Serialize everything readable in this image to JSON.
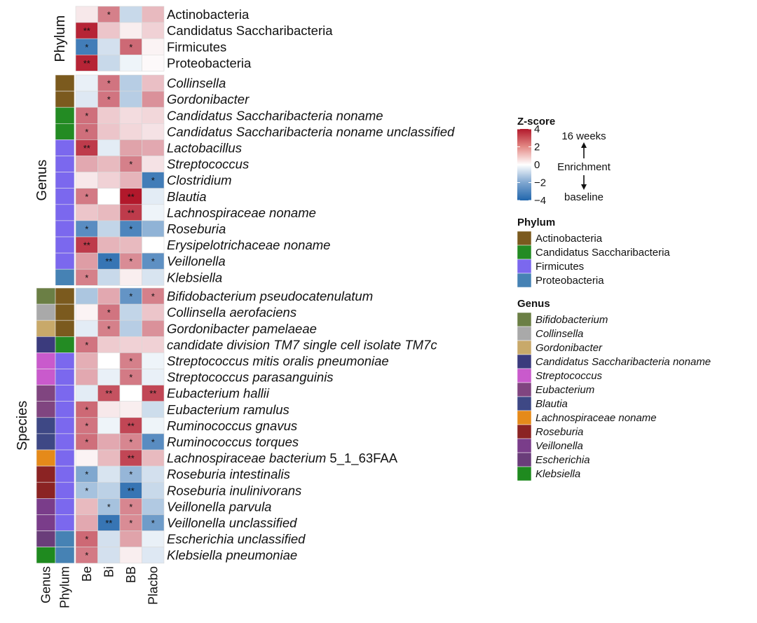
{
  "chart_data": {
    "type": "heatmap",
    "columns": [
      "Be",
      "Bi",
      "BB",
      "Placbo"
    ],
    "annotation_column_labels": [
      "Genus",
      "Phylum"
    ],
    "sections": [
      {
        "name": "Phylum",
        "rows": [
          {
            "label": "Actinobacteria",
            "italic": false,
            "phylum": null,
            "genus": null,
            "z": [
              0.4,
              2.2,
              -1.0,
              1.2
            ],
            "stars": [
              "",
              "*",
              "",
              ""
            ]
          },
          {
            "label": "Candidatus Saccharibacteria",
            "italic": false,
            "phylum": null,
            "genus": null,
            "z": [
              3.8,
              1.0,
              0.3,
              0.8
            ],
            "stars": [
              "**",
              "",
              "",
              ""
            ]
          },
          {
            "label": "Firmicutes",
            "italic": false,
            "phylum": null,
            "genus": null,
            "z": [
              -3.4,
              -0.8,
              2.6,
              0.2
            ],
            "stars": [
              "*",
              "",
              "*",
              ""
            ]
          },
          {
            "label": "Proteobacteria",
            "italic": false,
            "phylum": null,
            "genus": null,
            "z": [
              3.8,
              -1.0,
              -0.3,
              0.1
            ],
            "stars": [
              "**",
              "",
              "",
              ""
            ]
          }
        ]
      },
      {
        "name": "Genus",
        "rows": [
          {
            "label": "Collinsella",
            "italic": true,
            "phylum": "Actinobacteria",
            "genus": null,
            "z": [
              -0.4,
              2.4,
              -1.3,
              1.1
            ],
            "stars": [
              "",
              "*",
              "",
              ""
            ]
          },
          {
            "label": "Gordonibacter",
            "italic": true,
            "phylum": "Actinobacteria",
            "genus": null,
            "z": [
              -0.6,
              2.4,
              -1.3,
              1.9
            ],
            "stars": [
              "",
              "*",
              "",
              ""
            ]
          },
          {
            "label": "Candidatus Saccharibacteria noname",
            "italic": true,
            "phylum": "Candidatus Saccharibacteria",
            "genus": null,
            "z": [
              2.5,
              0.9,
              0.6,
              0.7
            ],
            "stars": [
              "*",
              "",
              "",
              ""
            ]
          },
          {
            "label": "Candidatus Saccharibacteria noname unclassified",
            "italic": true,
            "phylum": "Candidatus Saccharibacteria",
            "genus": null,
            "z": [
              2.5,
              1.0,
              0.7,
              0.5
            ],
            "stars": [
              "*",
              "",
              "",
              ""
            ]
          },
          {
            "label": "Lactobacillus",
            "italic": true,
            "phylum": "Firmicutes",
            "genus": null,
            "z": [
              3.4,
              -0.5,
              1.6,
              1.5
            ],
            "stars": [
              "**",
              "",
              "",
              ""
            ]
          },
          {
            "label": "Streptococcus",
            "italic": true,
            "phylum": "Firmicutes",
            "genus": null,
            "z": [
              1.5,
              1.2,
              2.2,
              0.5
            ],
            "stars": [
              "",
              "",
              "*",
              ""
            ]
          },
          {
            "label": "Clostridium",
            "italic": true,
            "phylum": "Firmicutes",
            "genus": null,
            "z": [
              0.4,
              0.8,
              1.3,
              -3.4
            ],
            "stars": [
              "",
              "",
              "",
              "*"
            ]
          },
          {
            "label": "Blautia",
            "italic": true,
            "phylum": "Firmicutes",
            "genus": null,
            "z": [
              2.3,
              0.0,
              4.0,
              -0.5
            ],
            "stars": [
              "*",
              "",
              "**",
              ""
            ]
          },
          {
            "label": "Lachnospiraceae noname",
            "italic": true,
            "phylum": "Firmicutes",
            "genus": null,
            "z": [
              1.0,
              1.2,
              3.4,
              -0.3
            ],
            "stars": [
              "",
              "",
              "**",
              ""
            ]
          },
          {
            "label": "Roseburia",
            "italic": true,
            "phylum": "Firmicutes",
            "genus": null,
            "z": [
              -3.0,
              -1.1,
              -3.2,
              -2.0
            ],
            "stars": [
              "*",
              "",
              "*",
              ""
            ]
          },
          {
            "label": "Erysipelotrichaceae noname",
            "italic": true,
            "phylum": "Firmicutes",
            "genus": null,
            "z": [
              3.4,
              1.3,
              1.2,
              0.0
            ],
            "stars": [
              "**",
              "",
              "",
              ""
            ]
          },
          {
            "label": "Veillonella",
            "italic": true,
            "phylum": "Firmicutes",
            "genus": null,
            "z": [
              1.7,
              -3.6,
              2.0,
              -2.9
            ],
            "stars": [
              "",
              "**",
              "*",
              "*"
            ]
          },
          {
            "label": "Klebsiella",
            "italic": true,
            "phylum": "Proteobacteria",
            "genus": null,
            "z": [
              2.2,
              -1.0,
              0.3,
              -0.7
            ],
            "stars": [
              "*",
              "",
              "",
              ""
            ]
          }
        ]
      },
      {
        "name": "Species",
        "rows": [
          {
            "label": "Bifidobacterium pseudocatenulatum",
            "italic": true,
            "phylum": "Actinobacteria",
            "genus": "Bifidobacterium",
            "z": [
              -1.5,
              1.5,
              -2.8,
              2.2
            ],
            "stars": [
              "",
              "",
              "*",
              "*"
            ]
          },
          {
            "label": "Collinsella aerofaciens",
            "italic": true,
            "phylum": "Actinobacteria",
            "genus": "Collinsella",
            "z": [
              0.2,
              2.4,
              -1.1,
              1.0
            ],
            "stars": [
              "",
              "*",
              "",
              ""
            ]
          },
          {
            "label": "Gordonibacter pamelaeae",
            "italic": true,
            "phylum": "Actinobacteria",
            "genus": "Gordonibacter",
            "z": [
              -0.5,
              2.2,
              -1.3,
              1.9
            ],
            "stars": [
              "",
              "*",
              "",
              ""
            ]
          },
          {
            "label": "candidate division TM7 single cell isolate TM7c",
            "italic": true,
            "phylum": "Candidatus Saccharibacteria",
            "genus": "Candidatus Saccharibacteria noname",
            "z": [
              2.4,
              0.9,
              0.8,
              0.8
            ],
            "stars": [
              "*",
              "",
              "",
              ""
            ]
          },
          {
            "label": "Streptococcus mitis oralis pneumoniae",
            "italic": true,
            "phylum": "Firmicutes",
            "genus": "Streptococcus",
            "z": [
              1.4,
              0.0,
              2.2,
              -0.3
            ],
            "stars": [
              "",
              "",
              "*",
              ""
            ]
          },
          {
            "label": "Streptococcus parasanguinis",
            "italic": true,
            "phylum": "Firmicutes",
            "genus": "Streptococcus",
            "z": [
              1.5,
              -0.4,
              2.3,
              -0.4
            ],
            "stars": [
              "",
              "",
              "*",
              ""
            ]
          },
          {
            "label": "Eubacterium hallii",
            "italic": true,
            "phylum": "Firmicutes",
            "genus": "Eubacterium",
            "z": [
              -0.5,
              3.0,
              0.0,
              3.2
            ],
            "stars": [
              "",
              "**",
              "",
              "**"
            ]
          },
          {
            "label": "Eubacterium ramulus",
            "italic": true,
            "phylum": "Firmicutes",
            "genus": "Eubacterium",
            "z": [
              2.6,
              0.4,
              0.3,
              -0.9
            ],
            "stars": [
              "*",
              "",
              "",
              ""
            ]
          },
          {
            "label": "Ruminococcus gnavus",
            "italic": true,
            "phylum": "Firmicutes",
            "genus": "Blautia",
            "z": [
              2.4,
              -0.3,
              3.2,
              -0.3
            ],
            "stars": [
              "*",
              "",
              "**",
              ""
            ]
          },
          {
            "label": "Ruminococcus torques",
            "italic": true,
            "phylum": "Firmicutes",
            "genus": "Blautia",
            "z": [
              2.5,
              1.5,
              2.1,
              -3.0
            ],
            "stars": [
              "*",
              "",
              "*",
              "*"
            ]
          },
          {
            "label": "Lachnospiraceae bacterium 5_1_63FAA",
            "italic": true,
            "italic_part": "Lachnospiraceae bacterium",
            "plain_part": " 5_1_63FAA",
            "phylum": "Firmicutes",
            "genus": "Lachnospiraceae noname",
            "z": [
              0.2,
              1.2,
              3.2,
              1.2
            ],
            "stars": [
              "",
              "",
              "**",
              ""
            ]
          },
          {
            "label": "Roseburia intestinalis",
            "italic": true,
            "phylum": "Firmicutes",
            "genus": "Roseburia",
            "z": [
              -2.3,
              -0.7,
              -1.9,
              -0.8
            ],
            "stars": [
              "*",
              "",
              "*",
              ""
            ]
          },
          {
            "label": "Roseburia inulinivorans",
            "italic": true,
            "phylum": "Firmicutes",
            "genus": "Roseburia",
            "z": [
              -1.6,
              -1.2,
              -3.6,
              -1.0
            ],
            "stars": [
              "*",
              "",
              "**",
              ""
            ]
          },
          {
            "label": "Veillonella parvula",
            "italic": true,
            "phylum": "Firmicutes",
            "genus": "Veillonella",
            "z": [
              1.2,
              -1.6,
              2.1,
              -1.4
            ],
            "stars": [
              "",
              "*",
              "*",
              ""
            ]
          },
          {
            "label": "Veillonella unclassified",
            "italic": true,
            "phylum": "Firmicutes",
            "genus": "Veillonella",
            "z": [
              1.5,
              -3.6,
              2.0,
              -2.6
            ],
            "stars": [
              "",
              "**",
              "*",
              "*"
            ]
          },
          {
            "label": "Escherichia unclassified",
            "italic": true,
            "phylum": "Proteobacteria",
            "genus": "Escherichia",
            "z": [
              2.6,
              -0.8,
              1.6,
              -0.4
            ],
            "stars": [
              "*",
              "",
              "",
              ""
            ]
          },
          {
            "label": "Klebsiella pneumoniae",
            "italic": true,
            "phylum": "Proteobacteria",
            "genus": "Klebsiella",
            "z": [
              2.3,
              -0.8,
              0.3,
              -0.6
            ],
            "stars": [
              "*",
              "",
              "",
              ""
            ]
          }
        ]
      }
    ],
    "color_scale": {
      "title": "Z-score",
      "min": -4,
      "max": 4,
      "ticks": [
        4,
        2,
        0,
        -2,
        -4
      ],
      "low_color": "#2166ac",
      "mid_color": "#ffffff",
      "high_color": "#b2182b"
    },
    "enrichment_note": {
      "top": "16 weeks",
      "middle": "Enrichment",
      "bottom": "baseline"
    },
    "legend_placement": "right",
    "phylum_legend": {
      "title": "Phylum",
      "items": [
        {
          "name": "Actinobacteria",
          "color": "#7b5a1e"
        },
        {
          "name": "Candidatus Saccharibacteria",
          "color": "#238b23"
        },
        {
          "name": "Firmicutes",
          "color": "#7b68ee"
        },
        {
          "name": "Proteobacteria",
          "color": "#4682b4"
        }
      ]
    },
    "genus_legend": {
      "title": "Genus",
      "items": [
        {
          "name": "Bifidobacterium",
          "color": "#6b7f45"
        },
        {
          "name": "Collinsella",
          "color": "#a9a9a9"
        },
        {
          "name": "Gordonibacter",
          "color": "#c8a96a"
        },
        {
          "name": "Candidatus Saccharibacteria noname",
          "color": "#3b3b7d"
        },
        {
          "name": "Streptococcus",
          "color": "#c95acc"
        },
        {
          "name": "Eubacterium",
          "color": "#804580"
        },
        {
          "name": "Blautia",
          "color": "#3e4885"
        },
        {
          "name": "Lachnospiraceae noname",
          "color": "#e58a1a"
        },
        {
          "name": "Roseburia",
          "color": "#8b2323"
        },
        {
          "name": "Veillonella",
          "color": "#7a3d8a"
        },
        {
          "name": "Escherichia",
          "color": "#6a3d7a"
        },
        {
          "name": "Klebsiella",
          "color": "#1f8a1f"
        }
      ]
    }
  }
}
